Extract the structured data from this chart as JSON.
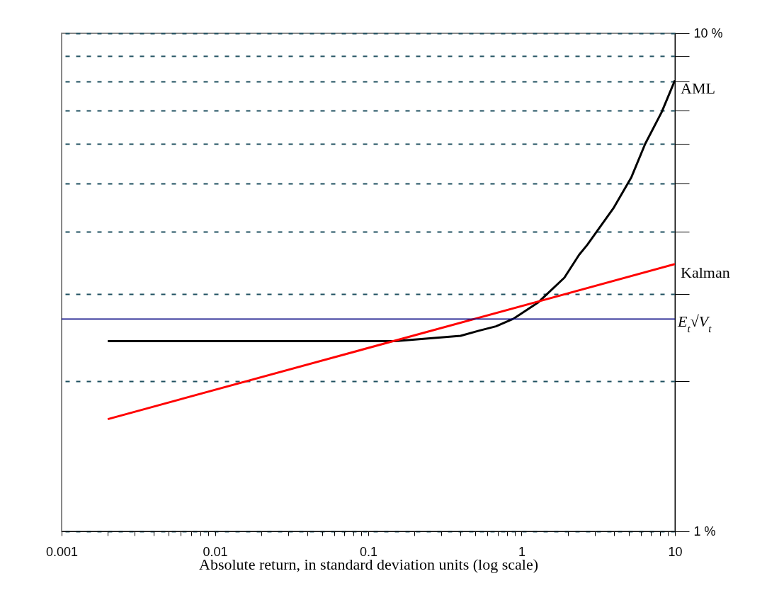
{
  "chart_data": {
    "type": "line",
    "xlabel": "Absolute return, in standard deviation units (log scale)",
    "log": "xy",
    "xlim": [
      0.001,
      10
    ],
    "ylim": [
      1,
      10
    ],
    "xticks": [
      {
        "value": 0.001,
        "label": "0.001"
      },
      {
        "value": 0.002,
        "label": null
      },
      {
        "value": 0.003,
        "label": null
      },
      {
        "value": 0.004,
        "label": null
      },
      {
        "value": 0.005,
        "label": null
      },
      {
        "value": 0.006,
        "label": null
      },
      {
        "value": 0.007,
        "label": null
      },
      {
        "value": 0.008,
        "label": null
      },
      {
        "value": 0.009,
        "label": null
      },
      {
        "value": 0.01,
        "label": "0.01"
      },
      {
        "value": 0.02,
        "label": null
      },
      {
        "value": 0.03,
        "label": null
      },
      {
        "value": 0.04,
        "label": null
      },
      {
        "value": 0.05,
        "label": null
      },
      {
        "value": 0.06,
        "label": null
      },
      {
        "value": 0.07,
        "label": null
      },
      {
        "value": 0.08,
        "label": null
      },
      {
        "value": 0.09,
        "label": null
      },
      {
        "value": 0.1,
        "label": "0.1"
      },
      {
        "value": 0.2,
        "label": null
      },
      {
        "value": 0.3,
        "label": null
      },
      {
        "value": 0.4,
        "label": null
      },
      {
        "value": 0.5,
        "label": null
      },
      {
        "value": 0.6,
        "label": null
      },
      {
        "value": 0.7,
        "label": null
      },
      {
        "value": 0.8,
        "label": null
      },
      {
        "value": 0.9,
        "label": null
      },
      {
        "value": 1,
        "label": "1"
      },
      {
        "value": 2,
        "label": null
      },
      {
        "value": 3,
        "label": null
      },
      {
        "value": 4,
        "label": null
      },
      {
        "value": 5,
        "label": null
      },
      {
        "value": 6,
        "label": null
      },
      {
        "value": 7,
        "label": null
      },
      {
        "value": 8,
        "label": null
      },
      {
        "value": 9,
        "label": null
      },
      {
        "value": 10,
        "label": "10"
      }
    ],
    "yticks": [
      {
        "value": 1,
        "label": "1 %"
      },
      {
        "value": 2,
        "label": null
      },
      {
        "value": 3,
        "label": null
      },
      {
        "value": 4,
        "label": null
      },
      {
        "value": 5,
        "label": null
      },
      {
        "value": 6,
        "label": null
      },
      {
        "value": 7,
        "label": null
      },
      {
        "value": 8,
        "label": null
      },
      {
        "value": 9,
        "label": null
      },
      {
        "value": 10,
        "label": "10 %"
      }
    ],
    "grid": "y",
    "legend": "right",
    "series": [
      {
        "name": "AML",
        "color": "#000000",
        "x": [
          0.002,
          0.01,
          0.1,
          0.15,
          0.4,
          0.53,
          0.68,
          0.88,
          1.28,
          1.9,
          2.37,
          2.68,
          4.0,
          5.2,
          6.4,
          8.2,
          10
        ],
        "values": [
          2.41,
          2.41,
          2.41,
          2.41,
          2.47,
          2.53,
          2.58,
          2.67,
          2.88,
          3.23,
          3.59,
          3.76,
          4.47,
          5.14,
          6.0,
          6.95,
          8.05
        ]
      },
      {
        "name": "Kalman",
        "color": "#ff0000",
        "x": [
          0.002,
          10
        ],
        "values": [
          1.68,
          3.44
        ]
      }
    ],
    "ref_lines": [
      {
        "axis": "y",
        "value": 2.67,
        "label": "E$_{t}$√V$_{t}$",
        "color": "#000080"
      }
    ]
  }
}
